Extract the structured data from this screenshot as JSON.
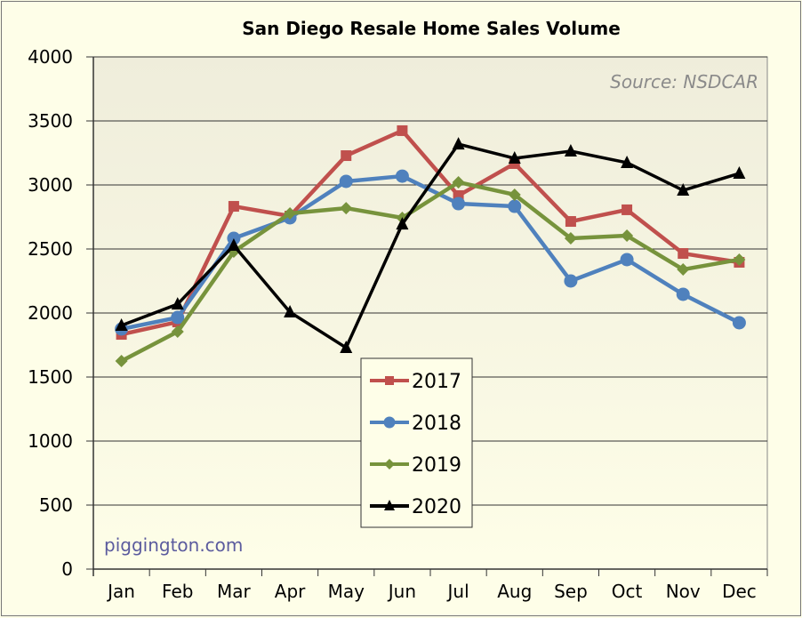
{
  "chart_data": {
    "type": "line",
    "title": "San Diego Resale Home Sales Volume",
    "source_note": "Source: NSDCAR",
    "watermark": "piggington.com",
    "xlabel": "",
    "ylabel": "",
    "categories": [
      "Jan",
      "Feb",
      "Mar",
      "Apr",
      "May",
      "Jun",
      "Jul",
      "Aug",
      "Sep",
      "Oct",
      "Nov",
      "Dec"
    ],
    "ylim": [
      0,
      4000
    ],
    "yticks": [
      0,
      500,
      1000,
      1500,
      2000,
      2500,
      3000,
      3500,
      4000
    ],
    "grid": true,
    "legend_position": "center-bottom",
    "series": [
      {
        "name": "2017",
        "color": "#c0504d",
        "marker": "square",
        "values": [
          1833,
          1930,
          2833,
          2757,
          3229,
          3424,
          2917,
          3167,
          2715,
          2806,
          2465,
          2396
        ]
      },
      {
        "name": "2018",
        "color": "#4f81bd",
        "marker": "circle",
        "values": [
          1875,
          1965,
          2583,
          2743,
          3028,
          3069,
          2854,
          2833,
          2250,
          2417,
          2146,
          1924
        ]
      },
      {
        "name": "2019",
        "color": "#77933c",
        "marker": "diamond",
        "values": [
          1625,
          1854,
          2479,
          2778,
          2819,
          2743,
          3021,
          2924,
          2583,
          2604,
          2340,
          2417
        ]
      },
      {
        "name": "2020",
        "color": "#000000",
        "marker": "triangle",
        "values": [
          1903,
          2069,
          2528,
          2007,
          1729,
          2694,
          3319,
          3208,
          3264,
          3174,
          2958,
          3090
        ]
      }
    ]
  }
}
